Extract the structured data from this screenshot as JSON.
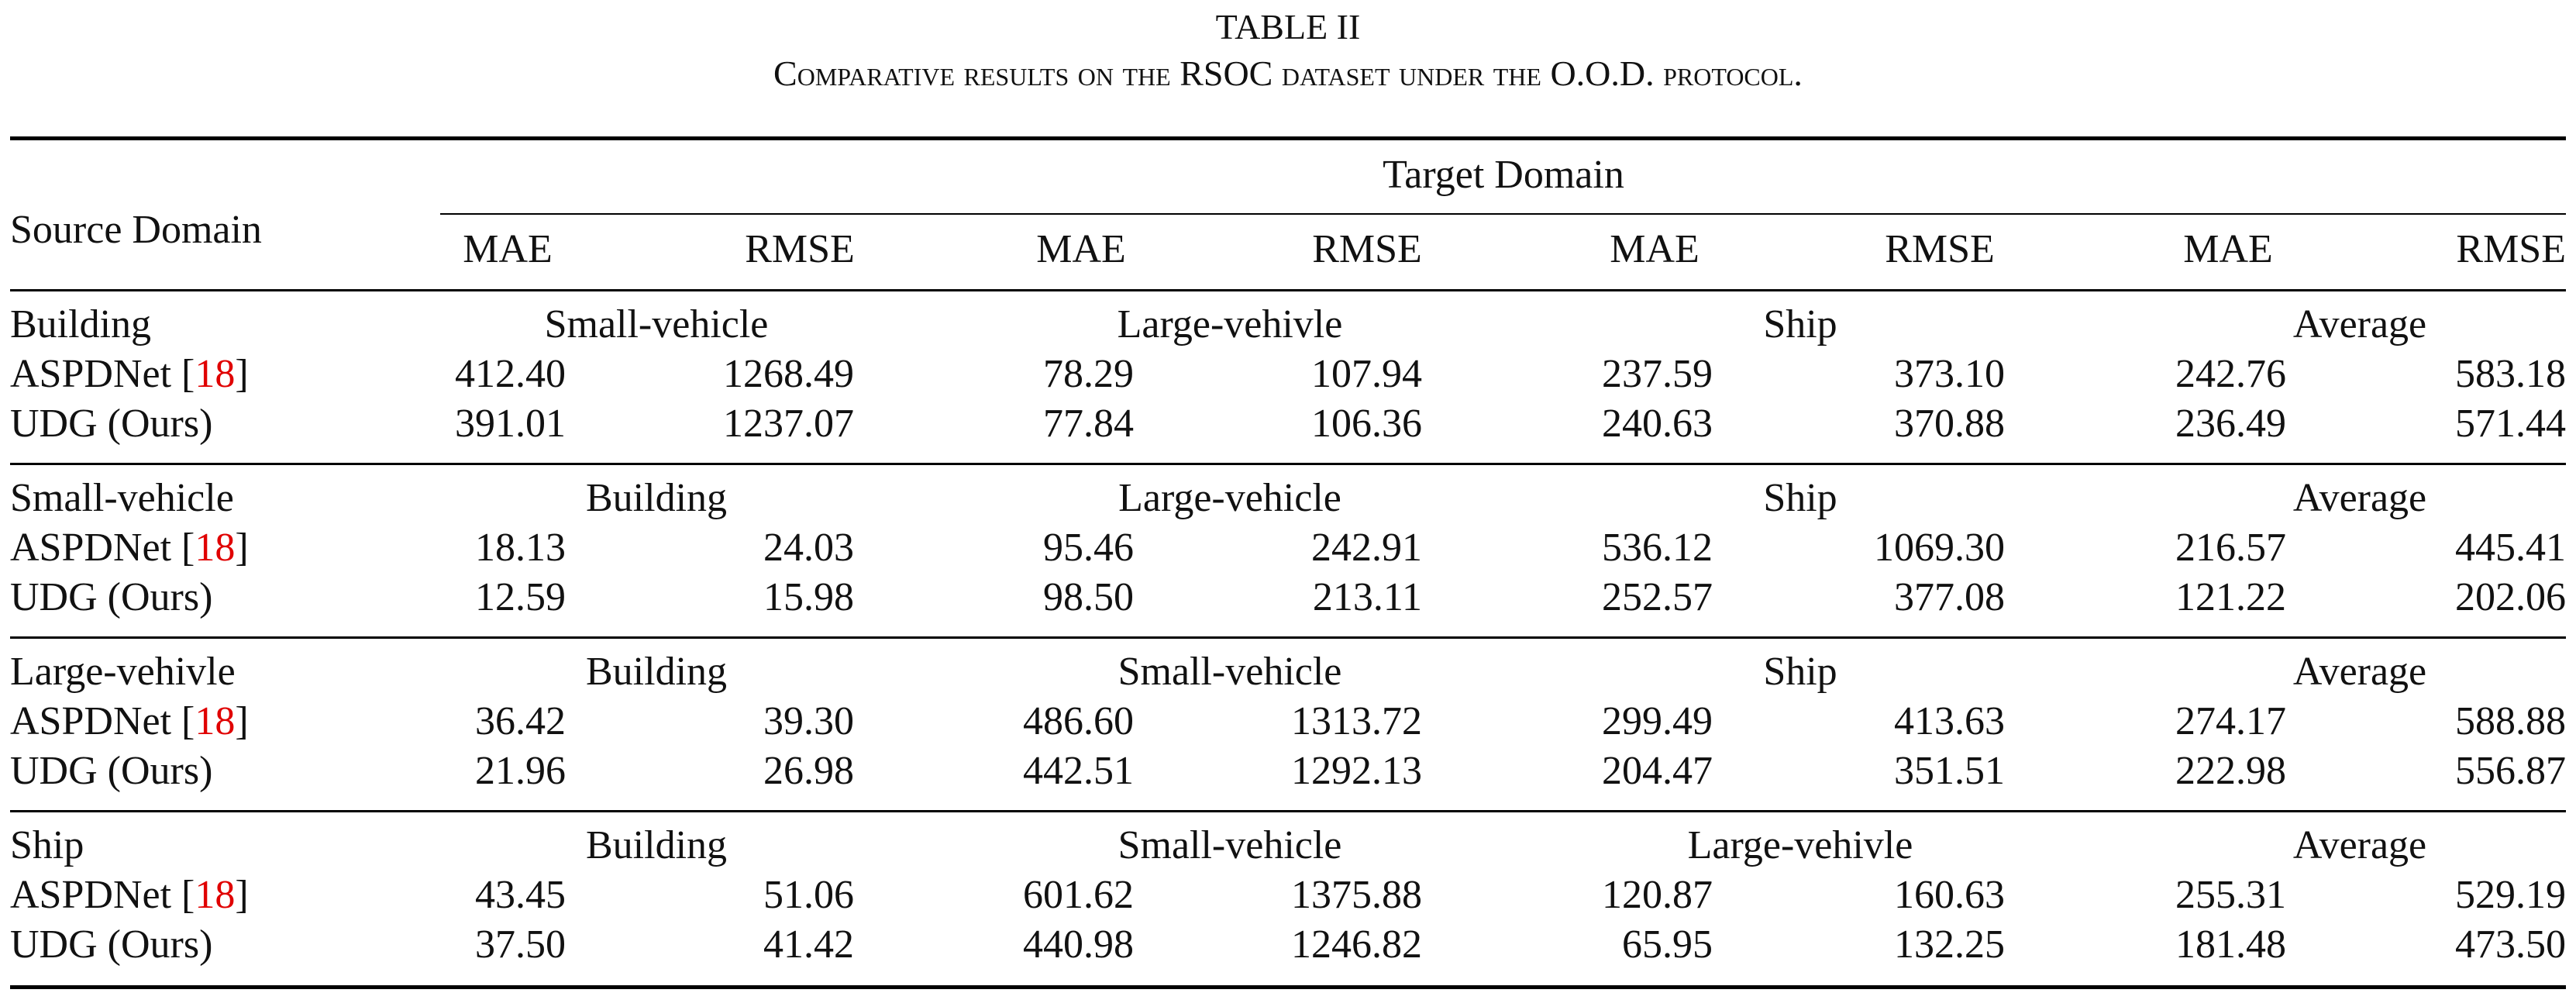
{
  "caption": {
    "title": "TABLE II",
    "subtitle": "Comparative results on the RSOC dataset under the O.O.D. protocol."
  },
  "header": {
    "source_domain": "Source Domain",
    "target_domain": "Target Domain",
    "metrics": [
      "MAE",
      "RMSE",
      "MAE",
      "RMSE",
      "MAE",
      "RMSE",
      "MAE",
      "RMSE"
    ]
  },
  "sections": [
    {
      "source": "Building",
      "targets": [
        "Small-vehicle",
        "Large-vehivle",
        "Ship",
        "Average"
      ],
      "rows": [
        {
          "method": "ASPDNet [",
          "ref": "18",
          "close": "]",
          "values": [
            "412.40",
            "1268.49",
            "78.29",
            "107.94",
            "237.59",
            "373.10",
            "242.76",
            "583.18"
          ]
        },
        {
          "method": "UDG (Ours)",
          "ref": "",
          "close": "",
          "values": [
            "391.01",
            "1237.07",
            "77.84",
            "106.36",
            "240.63",
            "370.88",
            "236.49",
            "571.44"
          ]
        }
      ]
    },
    {
      "source": "Small-vehicle",
      "targets": [
        "Building",
        "Large-vehicle",
        "Ship",
        "Average"
      ],
      "rows": [
        {
          "method": "ASPDNet [",
          "ref": "18",
          "close": "]",
          "values": [
            "18.13",
            "24.03",
            "95.46",
            "242.91",
            "536.12",
            "1069.30",
            "216.57",
            "445.41"
          ]
        },
        {
          "method": "UDG (Ours)",
          "ref": "",
          "close": "",
          "values": [
            "12.59",
            "15.98",
            "98.50",
            "213.11",
            "252.57",
            "377.08",
            "121.22",
            "202.06"
          ]
        }
      ]
    },
    {
      "source": "Large-vehivle",
      "targets": [
        "Building",
        "Small-vehicle",
        "Ship",
        "Average"
      ],
      "rows": [
        {
          "method": "ASPDNet [",
          "ref": "18",
          "close": "]",
          "values": [
            "36.42",
            "39.30",
            "486.60",
            "1313.72",
            "299.49",
            "413.63",
            "274.17",
            "588.88"
          ]
        },
        {
          "method": "UDG (Ours)",
          "ref": "",
          "close": "",
          "values": [
            "21.96",
            "26.98",
            "442.51",
            "1292.13",
            "204.47",
            "351.51",
            "222.98",
            "556.87"
          ]
        }
      ]
    },
    {
      "source": "Ship",
      "targets": [
        "Building",
        "Small-vehicle",
        "Large-vehivle",
        "Average"
      ],
      "rows": [
        {
          "method": "ASPDNet [",
          "ref": "18",
          "close": "]",
          "values": [
            "43.45",
            "51.06",
            "601.62",
            "1375.88",
            "120.87",
            "160.63",
            "255.31",
            "529.19"
          ]
        },
        {
          "method": "UDG (Ours)",
          "ref": "",
          "close": "",
          "values": [
            "37.50",
            "41.42",
            "440.98",
            "1246.82",
            "65.95",
            "132.25",
            "181.48",
            "473.50"
          ]
        }
      ]
    }
  ]
}
